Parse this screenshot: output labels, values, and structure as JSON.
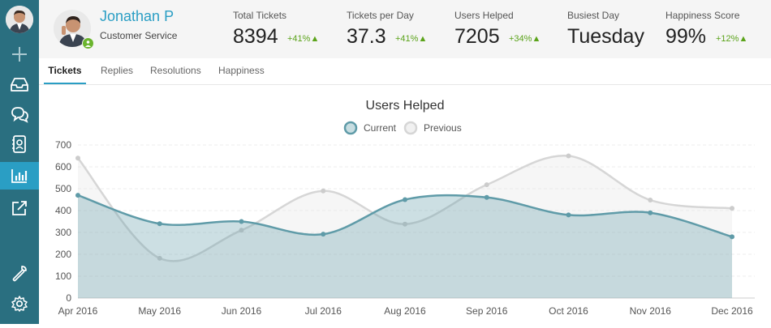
{
  "sidebar": {
    "items": [
      {
        "name": "avatar"
      },
      {
        "icon": "plus-icon"
      },
      {
        "icon": "inbox-icon"
      },
      {
        "icon": "chat-icon"
      },
      {
        "icon": "contacts-icon"
      },
      {
        "icon": "bar-chart-icon",
        "active": true
      },
      {
        "icon": "share-icon"
      },
      {
        "icon": "wrench-icon"
      },
      {
        "icon": "gear-icon"
      }
    ]
  },
  "profile": {
    "name": "Jonathan P",
    "role": "Customer Service",
    "status_color": "#6ab42d"
  },
  "stats": [
    {
      "label": "Total Tickets",
      "value": "8394",
      "change": "+41%▲"
    },
    {
      "label": "Tickets per Day",
      "value": "37.3",
      "change": "+41%▲"
    },
    {
      "label": "Users Helped",
      "value": "7205",
      "change": "+34%▲"
    },
    {
      "label": "Busiest Day",
      "value": "Tuesday",
      "change": ""
    },
    {
      "label": "Happiness Score",
      "value": "99%",
      "change": "+12%▲"
    }
  ],
  "tabs": [
    {
      "label": "Tickets",
      "active": true
    },
    {
      "label": "Replies",
      "active": false
    },
    {
      "label": "Resolutions",
      "active": false
    },
    {
      "label": "Happiness",
      "active": false
    }
  ],
  "colors": {
    "sidebar": "#2a6f80",
    "accent": "#2a9ec4",
    "positive": "#5ba31a",
    "current": "#5f9ba8",
    "previous": "#d6d6d6"
  },
  "chart_data": {
    "type": "line",
    "title": "Users Helped",
    "categories": [
      "Apr 2016",
      "May 2016",
      "Jun 2016",
      "Jul 2016",
      "Aug 2016",
      "Sep 2016",
      "Oct 2016",
      "Nov 2016",
      "Dec 2016"
    ],
    "series": [
      {
        "name": "Current",
        "values": [
          470,
          340,
          350,
          292,
          450,
          460,
          380,
          390,
          280
        ]
      },
      {
        "name": "Previous",
        "values": [
          640,
          182,
          310,
          490,
          338,
          518,
          650,
          448,
          410
        ]
      }
    ],
    "ylim": [
      0,
      700
    ],
    "yticks": [
      0,
      100,
      200,
      300,
      400,
      500,
      600,
      700
    ],
    "grid": true,
    "legend": "top-center",
    "curve": "smooth"
  }
}
